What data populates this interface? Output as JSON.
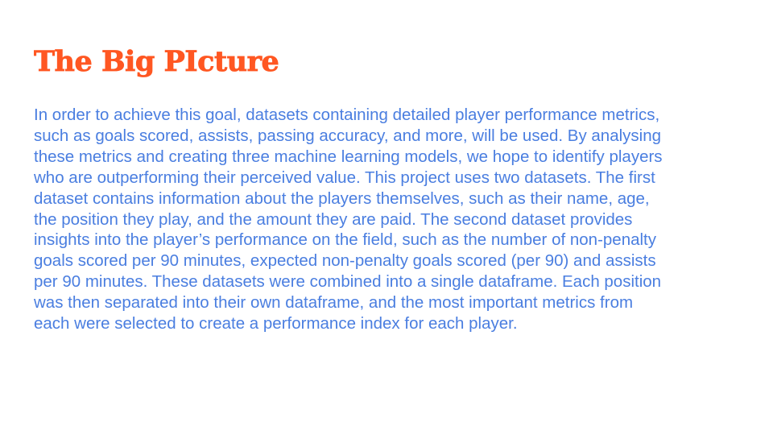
{
  "slide": {
    "title": "The Big PIcture",
    "body_lines": [
      "In order to achieve this goal, datasets containing detailed player performance metrics,",
      "such as goals scored, assists, passing accuracy, and more, will be used. By analysing",
      "these metrics and creating three machine learning models, we hope to identify players",
      "who are outperforming their perceived value. This project uses two datasets. The first",
      "dataset contains information about the players themselves, such as their name, age,",
      "the position they play, and the amount they are paid. The second dataset provides",
      "insights into the player’s performance on the field, such as the number of non-penalty",
      "goals scored per 90 minutes, expected non-penalty goals scored (per 90) and assists",
      "per 90 minutes. These datasets were combined into a single dataframe. Each position",
      "was then separated into their own dataframe, and the most important metrics from",
      "each were selected to create a performance index for each player."
    ],
    "colors": {
      "title": "#ff5722",
      "body": "#4a7ee0",
      "background": "#ffffff"
    }
  }
}
